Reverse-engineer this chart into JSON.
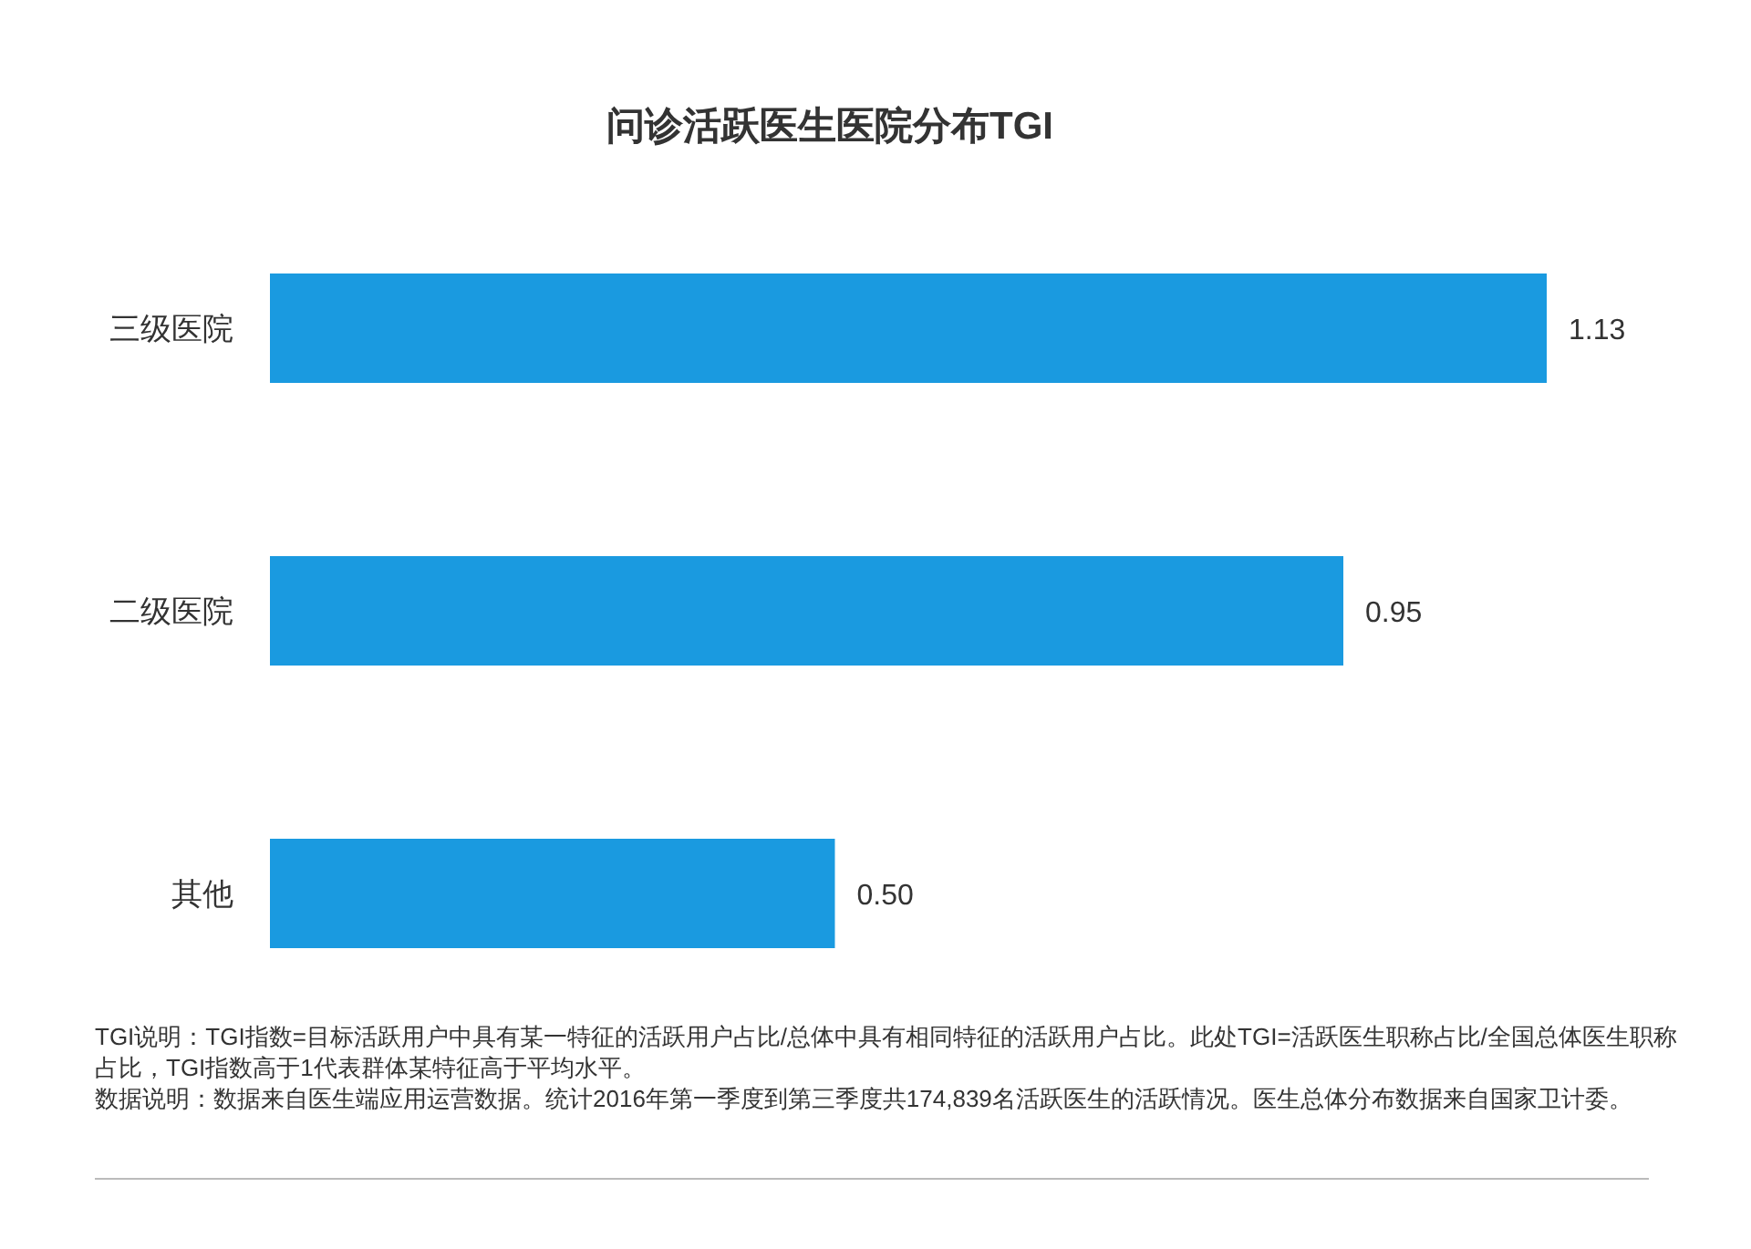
{
  "chart_data": {
    "type": "bar",
    "orientation": "horizontal",
    "title": "问诊活跃医生医院分布TGI",
    "categories": [
      "三级医院",
      "二级医院",
      "其他"
    ],
    "values": [
      1.13,
      0.95,
      0.5
    ],
    "value_labels": [
      "1.13",
      "0.95",
      "0.50"
    ],
    "color": "#1a9ae0",
    "annotations": [
      "TGI说明：TGI指数=目标活跃用户中具有某一特征的活跃用户占比/总体中具有相同特征的活跃用户占比。此处TGI=活跃医生职称占比/全国总体医生职称占比，TGI指数高于1代表群体某特征高于平均水平。",
      "数据说明：数据来自医生端应用运营数据。统计2016年第一季度到第三季度共174,839名活跃医生的活跃情况。医生总体分布数据来自国家卫计委。"
    ]
  }
}
